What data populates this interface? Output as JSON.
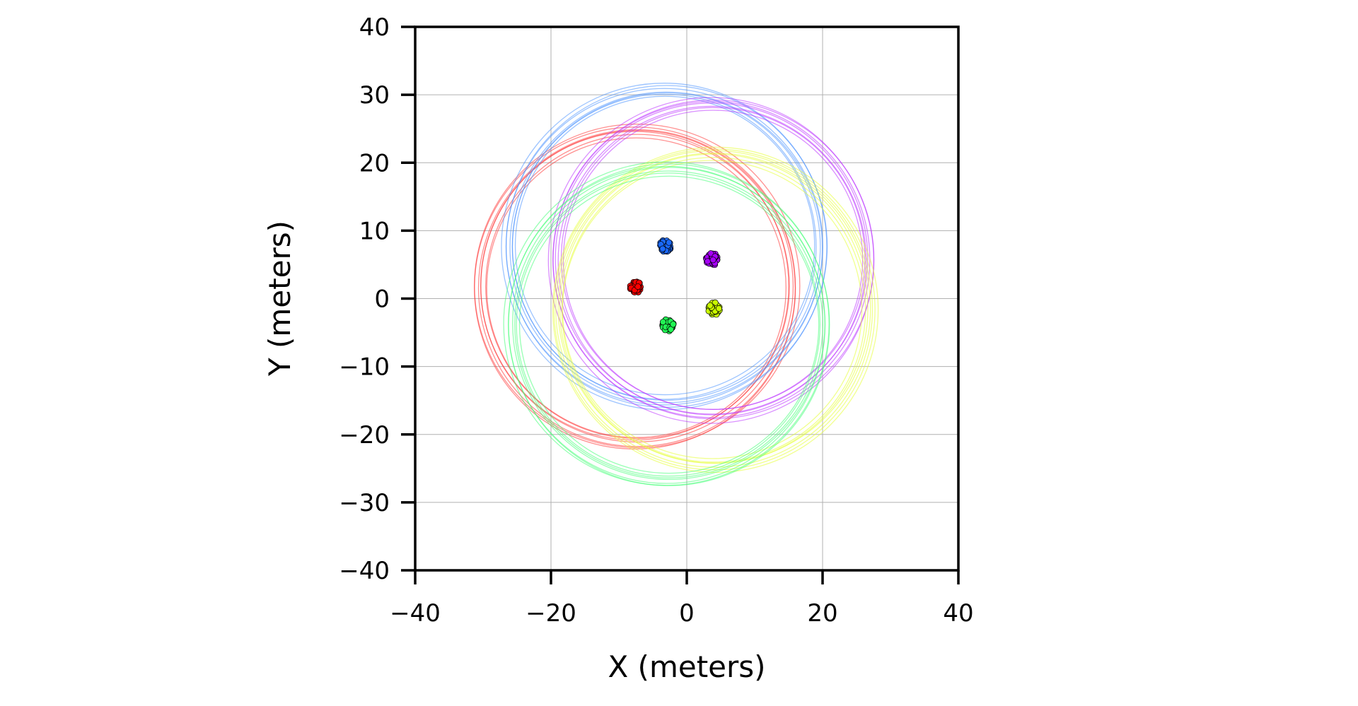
{
  "chart_data": {
    "type": "scatter",
    "xlabel": "X (meters)",
    "ylabel": "Y (meters)",
    "xlim": [
      -40,
      40
    ],
    "ylim": [
      -40,
      40
    ],
    "xticks": [
      "−40",
      "−20",
      "0",
      "20",
      "40"
    ],
    "yticks": [
      "40",
      "30",
      "20",
      "10",
      "0",
      "−10",
      "−20",
      "−30",
      "−40"
    ],
    "xtick_values": [
      -40,
      -20,
      0,
      20,
      40
    ],
    "ytick_values": [
      40,
      30,
      20,
      10,
      0,
      -10,
      -20,
      -30,
      -40
    ],
    "grid": true,
    "series": [
      {
        "color": "#ff0000",
        "ring_color": "#ff3333",
        "cluster_center": [
          -7.5,
          1.7
        ],
        "ring_center": [
          -7.5,
          1.7
        ],
        "ring_radius": 23
      },
      {
        "color": "#1a6aff",
        "ring_color": "#4d94ff",
        "cluster_center": [
          -3.2,
          7.7
        ],
        "ring_center": [
          -3.2,
          7.7
        ],
        "ring_radius": 23
      },
      {
        "color": "#aa00ff",
        "ring_color": "#bb33ff",
        "cluster_center": [
          3.7,
          5.8
        ],
        "ring_center": [
          3.7,
          5.8
        ],
        "ring_radius": 23
      },
      {
        "color": "#ccff00",
        "ring_color": "#e6ff33",
        "cluster_center": [
          4.0,
          -1.5
        ],
        "ring_center": [
          4.0,
          -1.5
        ],
        "ring_radius": 23
      },
      {
        "color": "#22ff55",
        "ring_color": "#44ff77",
        "cluster_center": [
          -2.8,
          -3.9
        ],
        "ring_center": [
          -2.8,
          -3.9
        ],
        "ring_radius": 23
      }
    ]
  }
}
